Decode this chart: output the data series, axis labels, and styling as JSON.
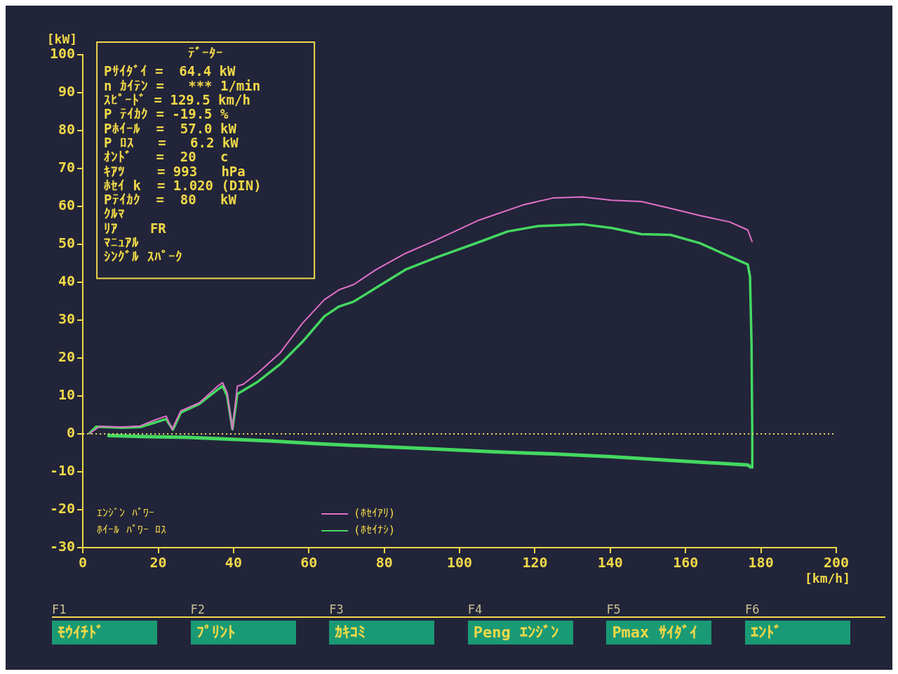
{
  "chart_data": {
    "type": "line",
    "xlabel": "[km/h]",
    "ylabel": "[kW]",
    "xlim": [
      0,
      200
    ],
    "xticks": [
      0,
      20,
      40,
      60,
      80,
      100,
      120,
      140,
      160,
      180,
      200
    ],
    "ylim": [
      -30,
      100
    ],
    "yticks": [
      -30,
      -20,
      -10,
      0,
      10,
      20,
      30,
      40,
      50,
      60,
      70,
      80,
      90,
      100
    ],
    "grid": false,
    "legend": "bottom left",
    "marker": "none",
    "line_style": "solid",
    "series": [
      {
        "name": "(ﾎｾｲｱﾘ)",
        "color": "#e070c8",
        "x": [
          1.6,
          4.5,
          10.4,
          15.2,
          19.2,
          22.1,
          23.7,
          26,
          30.9,
          35.8,
          37.1,
          38.3,
          39.7,
          41,
          42.6,
          46.5,
          52.4,
          58.3,
          64.1,
          68,
          71.9,
          77.8,
          85.6,
          93.5,
          105.2,
          116.9,
          124.7,
          132.6,
          140.4,
          148.2,
          156,
          163.8,
          171.7,
          176.5,
          177.7
        ],
        "values": [
          0,
          2,
          1.8,
          2.1,
          3.7,
          4.7,
          1.2,
          6.1,
          8.2,
          12.6,
          13.5,
          10.9,
          1.2,
          12.6,
          13.1,
          16.1,
          21.4,
          29.2,
          35.4,
          38,
          39.4,
          43.3,
          47.6,
          51,
          56.4,
          60.4,
          62.2,
          62.5,
          61.6,
          61.3,
          59.5,
          57.6,
          55.9,
          53.8,
          50.6
        ]
      },
      {
        "name": "(ﾎｾｲﾅｼ)",
        "color": "#44d860",
        "x": [
          1.6,
          3.5,
          10.4,
          15.2,
          19.2,
          22.1,
          23.9,
          26,
          30.9,
          35.8,
          37.1,
          38.3,
          39.7,
          41,
          46.5,
          52.4,
          58.3,
          64.1,
          68,
          71.9,
          77.8,
          85.6,
          93.5,
          105.2,
          112.8,
          120.8,
          132.6,
          140.4,
          148.2,
          156,
          163.8,
          171.7,
          176.5,
          177.1,
          177.5,
          177.7,
          177.7
        ],
        "values": [
          0,
          1.9,
          1.6,
          1.8,
          3,
          3.9,
          1.1,
          5.6,
          7.9,
          11.7,
          12.6,
          10,
          1.2,
          10.5,
          13.8,
          18.4,
          24.3,
          31,
          33.6,
          34.9,
          38.5,
          43.3,
          46.4,
          50.6,
          53.4,
          54.8,
          55.3,
          54.3,
          52.7,
          52.5,
          50.3,
          46.8,
          44.7,
          41.5,
          24,
          0,
          -8.9
        ]
      },
      {
        "color": "#44d860",
        "x": [
          6.5,
          15.2,
          27,
          38.7,
          50.4,
          62.2,
          77.8,
          93.5,
          109.1,
          124.7,
          140.4,
          156,
          171.7,
          176.5,
          177.5
        ],
        "values": [
          -0.4,
          -0.7,
          -0.9,
          -1.4,
          -1.9,
          -2.6,
          -3.3,
          -4,
          -4.7,
          -5.3,
          -6,
          -7,
          -7.9,
          -8.2,
          -8.9
        ]
      }
    ],
    "ref_lines": [
      {
        "axis": "y",
        "value": 0,
        "color": "#f0e060",
        "line_style": "dotted"
      }
    ],
    "annotations": [
      "ﾃﾞｰﾀｰ",
      "Pｻｲﾀﾞｲ =  64.4 kW",
      "n ｶｲﾃﾝ =   *** 1/min",
      "ｽﾋﾟｰﾄﾞ = 129.5 km/h",
      "P ﾃｲｶｸ = -19.5 %",
      "Pﾎｲｰﾙ  =  57.0 kW",
      "P ﾛｽ   =   6.2 kW",
      "ｵﾝﾄﾞ   =  20   c",
      "ｷｱﾂ    = 993   hPa",
      "ﾎｾｲ k  = 1.020 (DIN)",
      "Pﾃｲｶｸ  =  80   kW",
      "ｸﾙﾏ",
      "ﾘｱ    FR",
      "ﾏﾆｭｱﾙ",
      "ｼﾝｸﾞﾙ ｽﾊﾟｰｸ",
      "ｴﾝｼﾞﾝ ﾊﾟﾜｰ",
      "ﾎｲｰﾙ ﾊﾟﾜｰ ﾛｽ",
      "F1",
      "ﾓｳｲﾁﾄﾞ",
      "F2",
      "ﾌﾟﾘﾝﾄ",
      "F3",
      "ｶｷｺﾐ",
      "F4",
      "Peng ｴﾝｼﾞﾝ",
      "F5",
      "Pmax ｻｲﾀﾞｲ",
      "F6",
      "ｴﾝﾄﾞ"
    ]
  }
}
